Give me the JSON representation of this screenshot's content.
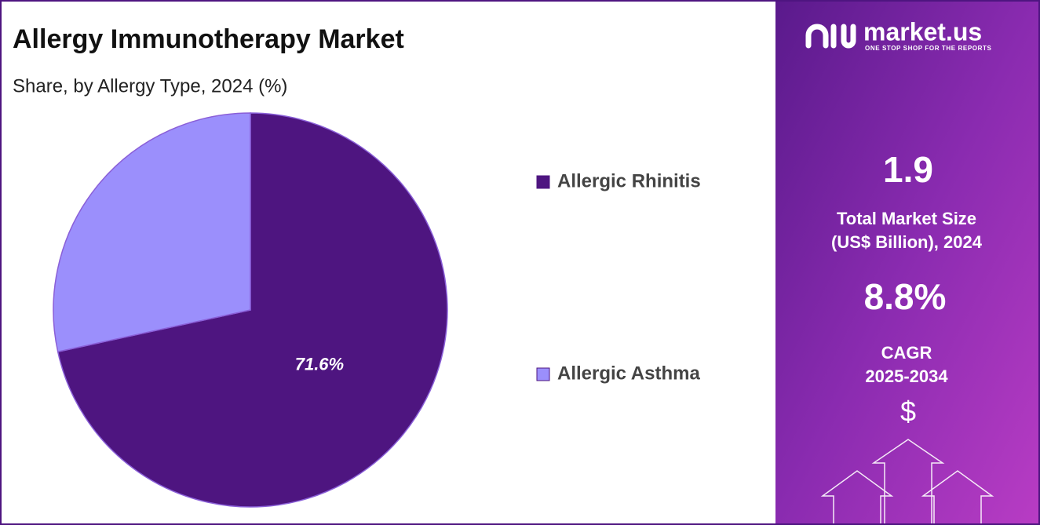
{
  "chart_data": {
    "type": "pie",
    "title": "Allergy Immunotherapy Market",
    "subtitle": "Share, by Allergy Type, 2024 (%)",
    "categories": [
      "Allergic Rhinitis",
      "Allergic Asthma"
    ],
    "values": [
      71.6,
      28.4
    ],
    "value_labels": [
      "71.6%",
      null
    ],
    "colors": [
      "#4e1580",
      "#9b8ffc"
    ],
    "legend": "right"
  },
  "panel": {
    "brand": "market.us",
    "tagline": "ONE STOP SHOP FOR THE REPORTS",
    "market_size": "1.9",
    "market_size_label": [
      "Total Market Size",
      "(US$ Billion), 2024"
    ],
    "cagr": "8.8%",
    "cagr_label": [
      "CAGR",
      "2025-2034"
    ],
    "currency_icon": "$"
  }
}
